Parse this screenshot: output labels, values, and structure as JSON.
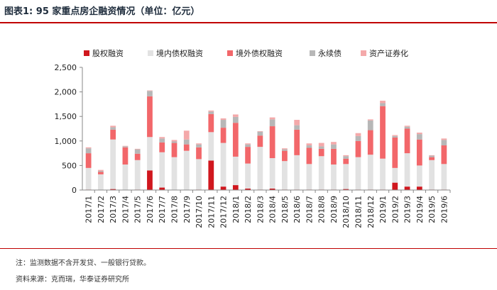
{
  "header": {
    "title": "图表1:  95 家重点房企融资情况（单位：亿元）"
  },
  "footer": {
    "note": "注：监测数据不含开发贷、一般银行贷款。",
    "source": "资料来源：克而瑞，华泰证券研究所"
  },
  "chart_data": {
    "type": "bar",
    "stacked": true,
    "title": "95 家重点房企融资情况（单位：亿元）",
    "xlabel": "",
    "ylabel": "",
    "ylim": [
      0,
      2500
    ],
    "yticks": [
      0,
      500,
      1000,
      1500,
      2000,
      2500
    ],
    "ytick_labels": [
      "0",
      "500",
      "1,000",
      "1,500",
      "2,000",
      "2,500"
    ],
    "grid": false,
    "legend_position": "top",
    "categories": [
      "2017/1",
      "2017/2",
      "2017/3",
      "2017/4",
      "2017/5",
      "2017/6",
      "2017/7",
      "2017/8",
      "2017/9",
      "2017/10",
      "2017/11",
      "2017/12",
      "2018/1",
      "2018/2",
      "2018/3",
      "2018/4",
      "2018/5",
      "2018/6",
      "2018/7",
      "2018/8",
      "2018/9",
      "2018/10",
      "2018/11",
      "2018/12",
      "2019/1",
      "2019/2",
      "2019/3",
      "2019/4",
      "2019/5",
      "2019/6"
    ],
    "series": [
      {
        "name": "股权融资",
        "color": "#d0171e",
        "values": [
          10,
          0,
          20,
          0,
          10,
          400,
          50,
          0,
          0,
          10,
          600,
          70,
          100,
          30,
          10,
          30,
          10,
          10,
          10,
          10,
          10,
          20,
          10,
          10,
          10,
          150,
          70,
          70,
          10,
          10
        ]
      },
      {
        "name": "境内债权融资",
        "color": "#e2e2e2",
        "values": [
          440,
          320,
          1010,
          520,
          600,
          680,
          720,
          670,
          800,
          620,
          580,
          890,
          580,
          510,
          870,
          620,
          580,
          700,
          520,
          680,
          510,
          510,
          660,
          710,
          630,
          300,
          680,
          430,
          600,
          520
        ]
      },
      {
        "name": "境外债权融资",
        "color": "#f2676a",
        "values": [
          300,
          50,
          200,
          350,
          130,
          830,
          200,
          290,
          130,
          240,
          370,
          310,
          690,
          340,
          230,
          650,
          210,
          520,
          330,
          150,
          320,
          110,
          330,
          500,
          1070,
          620,
          500,
          530,
          60,
          380
        ]
      },
      {
        "name": "永续债",
        "color": "#b7b7b7",
        "values": [
          100,
          20,
          50,
          20,
          90,
          110,
          80,
          30,
          100,
          60,
          50,
          160,
          120,
          50,
          80,
          140,
          30,
          90,
          50,
          50,
          90,
          50,
          100,
          200,
          60,
          30,
          40,
          110,
          30,
          110
        ]
      },
      {
        "name": "资产证券化",
        "color": "#f4a9aa",
        "values": [
          20,
          20,
          30,
          10,
          10,
          10,
          30,
          30,
          180,
          20,
          20,
          30,
          50,
          20,
          10,
          40,
          20,
          110,
          40,
          70,
          50,
          20,
          60,
          20,
          50,
          20,
          20,
          30,
          10,
          30
        ]
      }
    ]
  }
}
